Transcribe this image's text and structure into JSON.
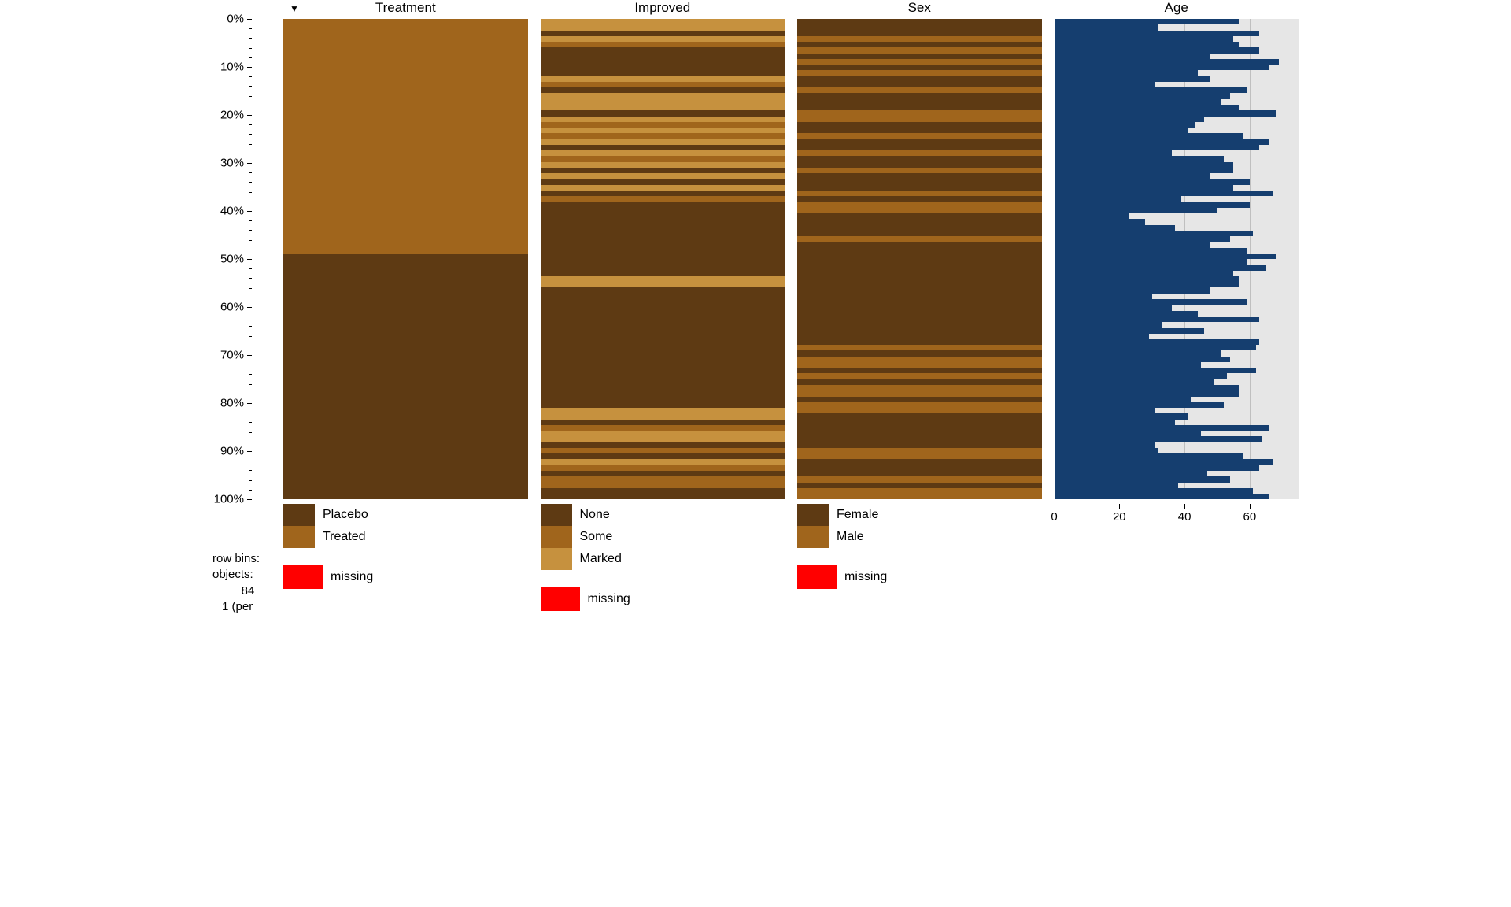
{
  "colors": {
    "cat0": "#5e3a13",
    "cat1": "#a0651c",
    "cat2": "#c6913e",
    "numeric_bar": "#153e6f",
    "numeric_bg": "#e6e6e6",
    "numeric_grid": "#bfbfbf",
    "missing": "#ff0000"
  },
  "y_axis": {
    "ticks": [
      0,
      10,
      20,
      30,
      40,
      50,
      60,
      70,
      80,
      90,
      100
    ],
    "suffix": "%",
    "minor_step": 2
  },
  "meta": {
    "rowbins_label": "row bins:",
    "objects_label": "objects:",
    "objects_value": "84",
    "per_label": "1 (per"
  },
  "panels": [
    {
      "id": "treatment",
      "title": "Treatment",
      "type": "categorical",
      "sort_active": true,
      "legend": [
        {
          "label": "Placebo",
          "color_key": "cat0"
        },
        {
          "label": "Treated",
          "color_key": "cat1"
        }
      ],
      "missing_label": "missing",
      "data": [
        1,
        1,
        1,
        1,
        1,
        1,
        1,
        1,
        1,
        1,
        1,
        1,
        1,
        1,
        1,
        1,
        1,
        1,
        1,
        1,
        1,
        1,
        1,
        1,
        1,
        1,
        1,
        1,
        1,
        1,
        1,
        1,
        1,
        1,
        1,
        1,
        1,
        1,
        1,
        1,
        1,
        0,
        0,
        0,
        0,
        0,
        0,
        0,
        0,
        0,
        0,
        0,
        0,
        0,
        0,
        0,
        0,
        0,
        0,
        0,
        0,
        0,
        0,
        0,
        0,
        0,
        0,
        0,
        0,
        0,
        0,
        0,
        0,
        0,
        0,
        0,
        0,
        0,
        0,
        0,
        0,
        0,
        0,
        0
      ]
    },
    {
      "id": "improved",
      "title": "Improved",
      "type": "categorical",
      "legend": [
        {
          "label": "None",
          "color_key": "cat0"
        },
        {
          "label": "Some",
          "color_key": "cat1"
        },
        {
          "label": "Marked",
          "color_key": "cat2"
        }
      ],
      "missing_label": "missing",
      "data": [
        2,
        2,
        0,
        2,
        1,
        0,
        0,
        0,
        0,
        0,
        2,
        1,
        0,
        2,
        2,
        2,
        0,
        2,
        1,
        2,
        1,
        2,
        0,
        2,
        1,
        2,
        0,
        2,
        0,
        2,
        0,
        1,
        0,
        0,
        0,
        0,
        0,
        0,
        0,
        0,
        0,
        0,
        0,
        0,
        0,
        2,
        2,
        0,
        0,
        0,
        0,
        0,
        0,
        0,
        0,
        0,
        0,
        0,
        0,
        0,
        0,
        0,
        0,
        0,
        0,
        0,
        0,
        0,
        2,
        2,
        0,
        1,
        2,
        2,
        0,
        1,
        0,
        2,
        1,
        0,
        1,
        1,
        0,
        0
      ]
    },
    {
      "id": "sex",
      "title": "Sex",
      "type": "categorical",
      "legend": [
        {
          "label": "Female",
          "color_key": "cat0"
        },
        {
          "label": "Male",
          "color_key": "cat1"
        }
      ],
      "missing_label": "missing",
      "data": [
        0,
        0,
        0,
        1,
        0,
        1,
        0,
        1,
        0,
        1,
        0,
        0,
        1,
        0,
        0,
        0,
        1,
        1,
        0,
        0,
        1,
        0,
        0,
        1,
        0,
        0,
        1,
        0,
        0,
        0,
        1,
        0,
        1,
        1,
        0,
        0,
        0,
        0,
        1,
        0,
        0,
        0,
        0,
        0,
        0,
        0,
        0,
        0,
        0,
        0,
        0,
        0,
        0,
        0,
        0,
        0,
        0,
        1,
        0,
        1,
        1,
        0,
        1,
        0,
        1,
        1,
        0,
        1,
        1,
        0,
        0,
        0,
        0,
        0,
        0,
        1,
        1,
        0,
        0,
        0,
        1,
        0,
        1,
        1
      ]
    },
    {
      "id": "age",
      "title": "Age",
      "type": "numeric",
      "x_axis": {
        "min": 0,
        "max": 75,
        "ticks": [
          0,
          20,
          40,
          60
        ]
      },
      "data": [
        57,
        32,
        63,
        55,
        57,
        63,
        48,
        69,
        66,
        44,
        48,
        31,
        59,
        54,
        51,
        57,
        68,
        46,
        43,
        41,
        58,
        66,
        63,
        36,
        52,
        55,
        55,
        48,
        60,
        55,
        67,
        39,
        60,
        50,
        23,
        28,
        37,
        61,
        54,
        48,
        59,
        68,
        59,
        65,
        55,
        57,
        57,
        48,
        30,
        59,
        36,
        44,
        63,
        33,
        46,
        29,
        63,
        62,
        51,
        54,
        45,
        62,
        53,
        49,
        57,
        57,
        42,
        52,
        31,
        41,
        37,
        66,
        45,
        64,
        31,
        32,
        58,
        67,
        63,
        47,
        54,
        38,
        61,
        66
      ]
    }
  ]
}
